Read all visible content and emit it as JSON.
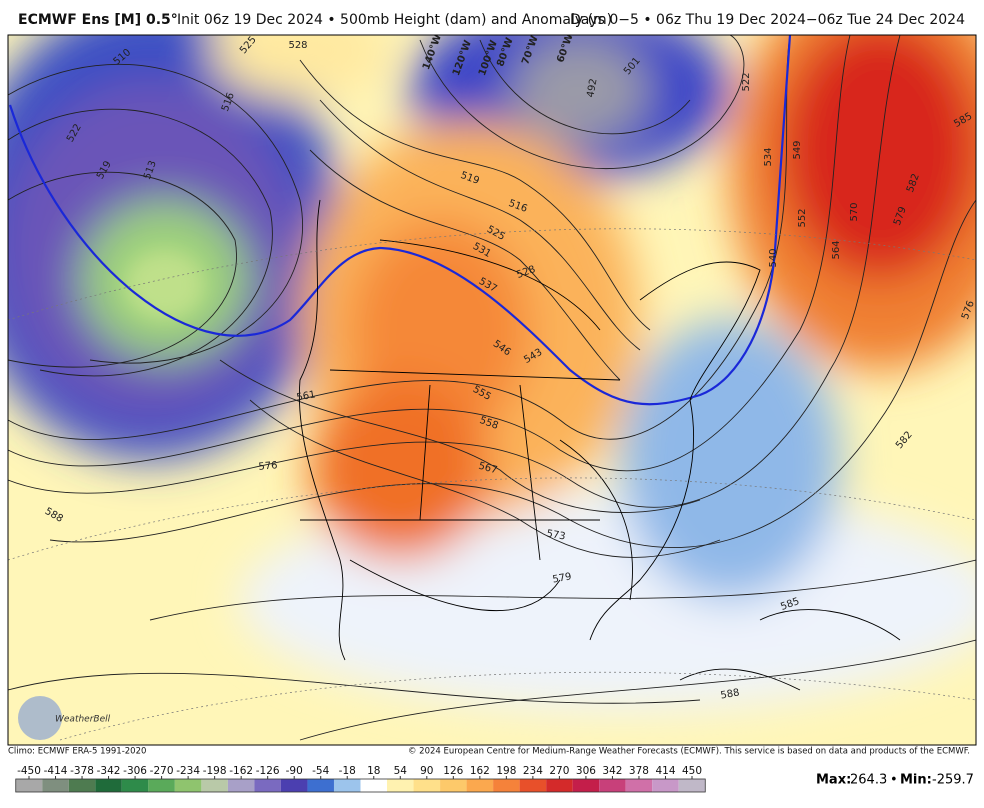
{
  "header": {
    "title": "ECMWF Ens [M] 0.5°",
    "subtitle": "Init 06z 19 Dec 2024 • 500mb Height (dam) and Anomaly (m)",
    "valid": "Days 0−5 • 06z Thu 19 Dec 2024−06z Tue 24 Dec 2024"
  },
  "map": {
    "contour_labels": [
      510,
      525,
      528,
      516,
      522,
      519,
      513,
      492,
      501,
      522,
      534,
      549,
      552,
      540,
      564,
      570,
      579,
      582,
      585,
      576,
      519,
      516,
      525,
      531,
      528,
      537,
      546,
      543,
      555,
      558,
      567,
      573,
      579,
      576,
      561,
      588,
      585,
      588,
      582
    ],
    "longitude_labels": [
      "140°W",
      "120°W",
      "100°W",
      "80°W",
      "70°W",
      "60°W"
    ],
    "logo": "WeatherBell"
  },
  "footer": {
    "climo": "Climo: ECMWF ERA-5 1991-2020",
    "copyright": "© 2024 European Centre for Medium-Range Weather Forecasts (ECMWF). This service is based on data and products of the ECMWF."
  },
  "colorbar": {
    "ticks": [
      -450,
      -414,
      -378,
      -342,
      -306,
      -270,
      -234,
      -198,
      -162,
      -126,
      -90,
      -54,
      -18,
      18,
      54,
      90,
      126,
      162,
      198,
      234,
      270,
      306,
      342,
      378,
      414,
      450
    ],
    "colors": [
      "#a8a8a8",
      "#7f8f7f",
      "#4e7b50",
      "#1f6b3a",
      "#2e8b4a",
      "#5aaa5a",
      "#8fc46e",
      "#b9c9a8",
      "#a8a0c8",
      "#7a6ac0",
      "#4b3fb0",
      "#3d6fd0",
      "#9cc4ec",
      "#ffffff",
      "#fff2b0",
      "#ffe08a",
      "#fdc96a",
      "#fba84e",
      "#f5823a",
      "#e8502a",
      "#d42a2a",
      "#c41e4a",
      "#c8407a",
      "#d070a8",
      "#c898c8",
      "#c0b8c8"
    ]
  },
  "stats": {
    "max_label": "Max:",
    "max": 264.3,
    "separator": "•",
    "min_label": "Min:",
    "min": -259.7
  }
}
